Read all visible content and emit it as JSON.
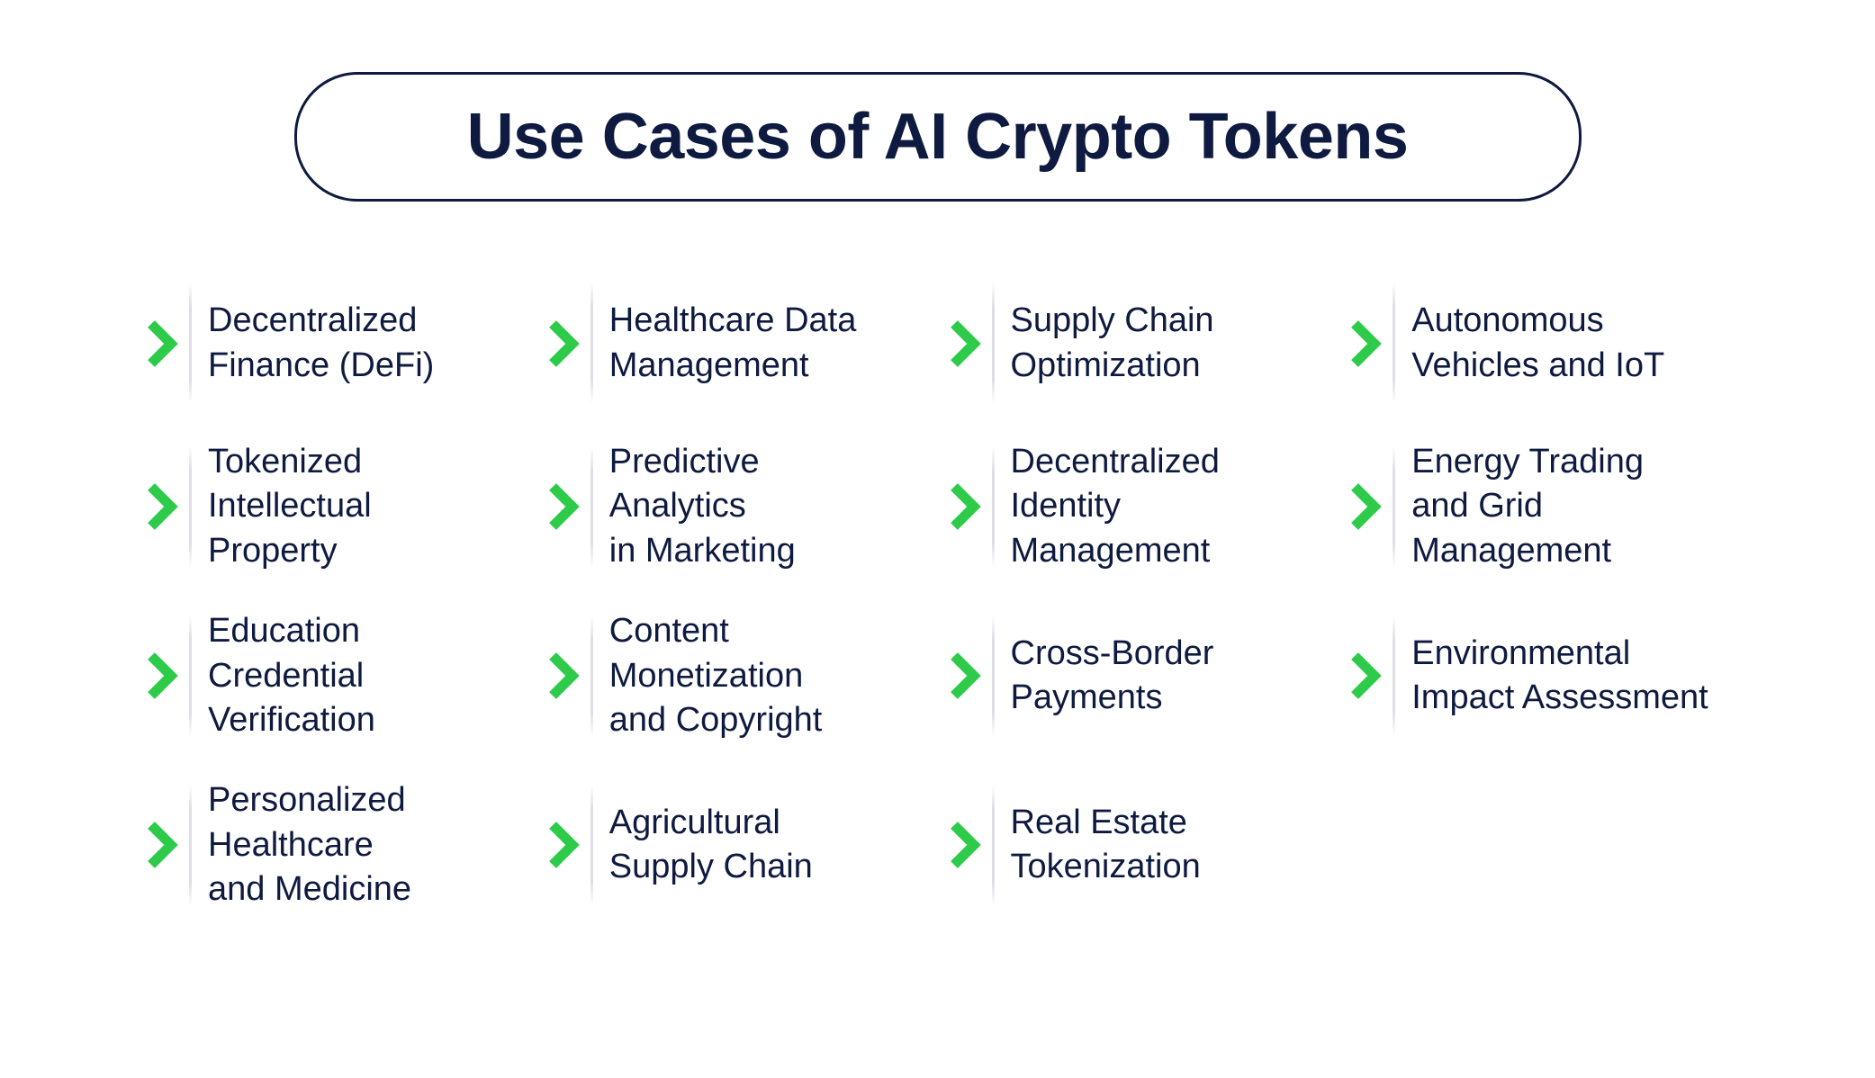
{
  "layout": {
    "type": "infographic",
    "background_color": "#ffffff",
    "columns": 4,
    "rows": 4
  },
  "title": {
    "text": "Use Cases of AI Crypto Tokens",
    "font_size": 72,
    "font_weight": 700,
    "color": "#0e1a3f",
    "border_color": "#0e1a3f",
    "border_radius": 70
  },
  "chevron": {
    "color": "#2ecb4a",
    "stroke_width": 11
  },
  "item_style": {
    "text_color": "#0e1a3f",
    "font_size": 38,
    "divider_color": "rgba(14,26,63,0.14)"
  },
  "items": [
    {
      "label": "Decentralized\nFinance (DeFi)"
    },
    {
      "label": "Healthcare Data\nManagement"
    },
    {
      "label": "Supply Chain\nOptimization"
    },
    {
      "label": "Autonomous\nVehicles and IoT"
    },
    {
      "label": "Tokenized\nIntellectual\nProperty"
    },
    {
      "label": "Predictive\nAnalytics\nin Marketing"
    },
    {
      "label": "Decentralized\nIdentity\nManagement"
    },
    {
      "label": "Energy Trading\nand Grid\nManagement"
    },
    {
      "label": "Education\nCredential\nVerification"
    },
    {
      "label": "Content\nMonetization\nand Copyright"
    },
    {
      "label": "Cross-Border\nPayments"
    },
    {
      "label": "Environmental\nImpact Assessment"
    },
    {
      "label": "Personalized\nHealthcare\nand Medicine"
    },
    {
      "label": "Agricultural\nSupply Chain"
    },
    {
      "label": "Real Estate\nTokenization"
    }
  ]
}
